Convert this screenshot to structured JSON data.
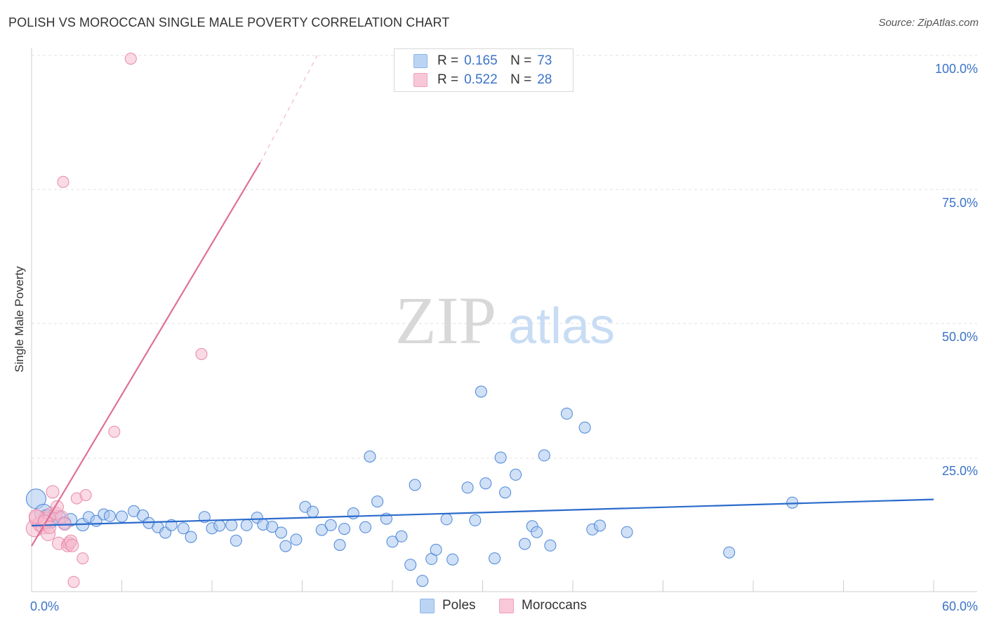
{
  "title": "POLISH VS MOROCCAN SINGLE MALE POVERTY CORRELATION CHART",
  "source": "Source: ZipAtlas.com",
  "watermark": {
    "zip": "ZIP",
    "atlas": "atlas"
  },
  "legend": {
    "r_label": "R =",
    "n_label": "N =",
    "rows": [
      {
        "name": "Poles",
        "r": "0.165",
        "n": "73",
        "color": "#8cb4e8",
        "fill": "#bcd4f4"
      },
      {
        "name": "Moroccans",
        "r": "0.522",
        "n": "28",
        "color": "#f0a0bc",
        "fill": "#f8c8d8"
      }
    ]
  },
  "chart_data": {
    "type": "scatter",
    "title": "POLISH VS MOROCCAN SINGLE MALE POVERTY CORRELATION CHART",
    "xlabel": "",
    "ylabel": "Single Male Poverty",
    "xlim": [
      0,
      60
    ],
    "ylim": [
      0,
      100
    ],
    "x_tick_labels": [
      "0.0%",
      "60.0%"
    ],
    "y_ticks": [
      25,
      50,
      75,
      100
    ],
    "y_tick_labels": [
      "25.0%",
      "50.0%",
      "75.0%",
      "100.0%"
    ],
    "grid": true,
    "series": [
      {
        "name": "Poles",
        "color": "#4a86d8",
        "fill": "#a9c6ee",
        "trend": {
          "x": [
            0,
            60
          ],
          "y": [
            12.3,
            17.2
          ],
          "color": "#2b6bcc"
        },
        "points": [
          [
            0.3,
            17.3,
            14
          ],
          [
            0.8,
            14.6,
            13
          ],
          [
            1.2,
            13.2,
            11
          ],
          [
            1.8,
            13.8,
            10
          ],
          [
            2.2,
            12.8,
            9
          ],
          [
            2.6,
            13.4,
            9
          ],
          [
            3.4,
            12.5,
            9
          ],
          [
            3.8,
            13.9,
            8
          ],
          [
            4.3,
            13.2,
            8
          ],
          [
            4.8,
            14.4,
            8
          ],
          [
            5.2,
            14.1,
            8
          ],
          [
            6.0,
            14.0,
            8
          ],
          [
            6.8,
            15.0,
            8
          ],
          [
            7.4,
            14.2,
            8
          ],
          [
            7.8,
            12.8,
            8
          ],
          [
            8.4,
            12.0,
            8
          ],
          [
            8.9,
            11.0,
            8
          ],
          [
            9.3,
            12.4,
            8
          ],
          [
            10.1,
            11.8,
            8
          ],
          [
            10.6,
            10.2,
            8
          ],
          [
            11.5,
            13.9,
            8
          ],
          [
            12.0,
            11.8,
            8
          ],
          [
            12.5,
            12.3,
            8
          ],
          [
            13.3,
            12.4,
            8
          ],
          [
            13.6,
            9.5,
            8
          ],
          [
            14.3,
            12.4,
            8
          ],
          [
            15.0,
            13.8,
            8
          ],
          [
            15.4,
            12.5,
            8
          ],
          [
            16.0,
            12.1,
            8
          ],
          [
            16.6,
            11.0,
            8
          ],
          [
            16.9,
            8.5,
            8
          ],
          [
            17.6,
            9.7,
            8
          ],
          [
            18.2,
            15.8,
            8
          ],
          [
            18.7,
            14.9,
            8
          ],
          [
            19.3,
            11.5,
            8
          ],
          [
            19.9,
            12.4,
            8
          ],
          [
            20.5,
            8.7,
            8
          ],
          [
            20.8,
            11.7,
            8
          ],
          [
            21.4,
            14.6,
            8
          ],
          [
            22.2,
            12.0,
            8
          ],
          [
            22.5,
            25.2,
            8
          ],
          [
            23.0,
            16.8,
            8
          ],
          [
            23.6,
            13.6,
            8
          ],
          [
            24.0,
            9.3,
            8
          ],
          [
            24.6,
            10.3,
            8
          ],
          [
            25.2,
            5.0,
            8
          ],
          [
            25.5,
            19.9,
            8
          ],
          [
            26.0,
            2.0,
            8
          ],
          [
            26.6,
            6.1,
            8
          ],
          [
            26.9,
            7.8,
            8
          ],
          [
            27.6,
            13.5,
            8
          ],
          [
            28.0,
            6.0,
            8
          ],
          [
            29.0,
            19.4,
            8
          ],
          [
            29.5,
            13.3,
            8
          ],
          [
            29.9,
            37.3,
            8
          ],
          [
            30.2,
            20.2,
            8
          ],
          [
            30.8,
            6.2,
            8
          ],
          [
            31.2,
            25.0,
            8
          ],
          [
            31.5,
            18.5,
            8
          ],
          [
            32.2,
            21.8,
            8
          ],
          [
            32.8,
            8.9,
            8
          ],
          [
            33.3,
            12.2,
            8
          ],
          [
            33.6,
            11.1,
            8
          ],
          [
            34.1,
            25.4,
            8
          ],
          [
            34.5,
            8.6,
            8
          ],
          [
            35.6,
            33.2,
            8
          ],
          [
            36.8,
            30.6,
            8
          ],
          [
            37.3,
            11.6,
            8
          ],
          [
            37.8,
            12.3,
            8
          ],
          [
            39.6,
            11.1,
            8
          ],
          [
            46.4,
            7.3,
            8
          ],
          [
            50.6,
            16.6,
            8
          ],
          [
            1.0,
            14.0,
            10
          ]
        ]
      },
      {
        "name": "Moroccans",
        "color": "#e88aaa",
        "fill": "#f6bccf",
        "trend": {
          "x": [
            0,
            15.2
          ],
          "y": [
            8.5,
            80.0
          ],
          "color": "#e07096",
          "dash_x": [
            15.2,
            19.0
          ],
          "dash_y": [
            80.0,
            100.0
          ]
        },
        "points": [
          [
            0.2,
            11.8,
            12
          ],
          [
            0.4,
            13.6,
            12
          ],
          [
            0.6,
            12.6,
            11
          ],
          [
            0.8,
            12.2,
            11
          ],
          [
            1.0,
            13.4,
            11
          ],
          [
            1.1,
            10.8,
            10
          ],
          [
            1.3,
            14.4,
            10
          ],
          [
            1.4,
            18.6,
            9
          ],
          [
            1.6,
            14.6,
            9
          ],
          [
            1.7,
            15.8,
            9
          ],
          [
            1.8,
            9.0,
            9
          ],
          [
            2.0,
            13.9,
            9
          ],
          [
            2.2,
            12.6,
            9
          ],
          [
            2.1,
            76.4,
            8
          ],
          [
            2.4,
            8.6,
            9
          ],
          [
            2.5,
            9.0,
            9
          ],
          [
            2.6,
            9.4,
            9
          ],
          [
            2.7,
            8.6,
            9
          ],
          [
            2.8,
            1.8,
            8
          ],
          [
            3.0,
            17.4,
            8
          ],
          [
            3.4,
            6.2,
            8
          ],
          [
            3.6,
            18.0,
            8
          ],
          [
            5.5,
            29.8,
            8
          ],
          [
            6.6,
            99.4,
            8
          ],
          [
            11.3,
            44.3,
            8
          ],
          [
            0.3,
            14.0,
            10
          ],
          [
            0.9,
            13.0,
            10
          ],
          [
            1.2,
            12.0,
            9
          ]
        ]
      }
    ]
  }
}
